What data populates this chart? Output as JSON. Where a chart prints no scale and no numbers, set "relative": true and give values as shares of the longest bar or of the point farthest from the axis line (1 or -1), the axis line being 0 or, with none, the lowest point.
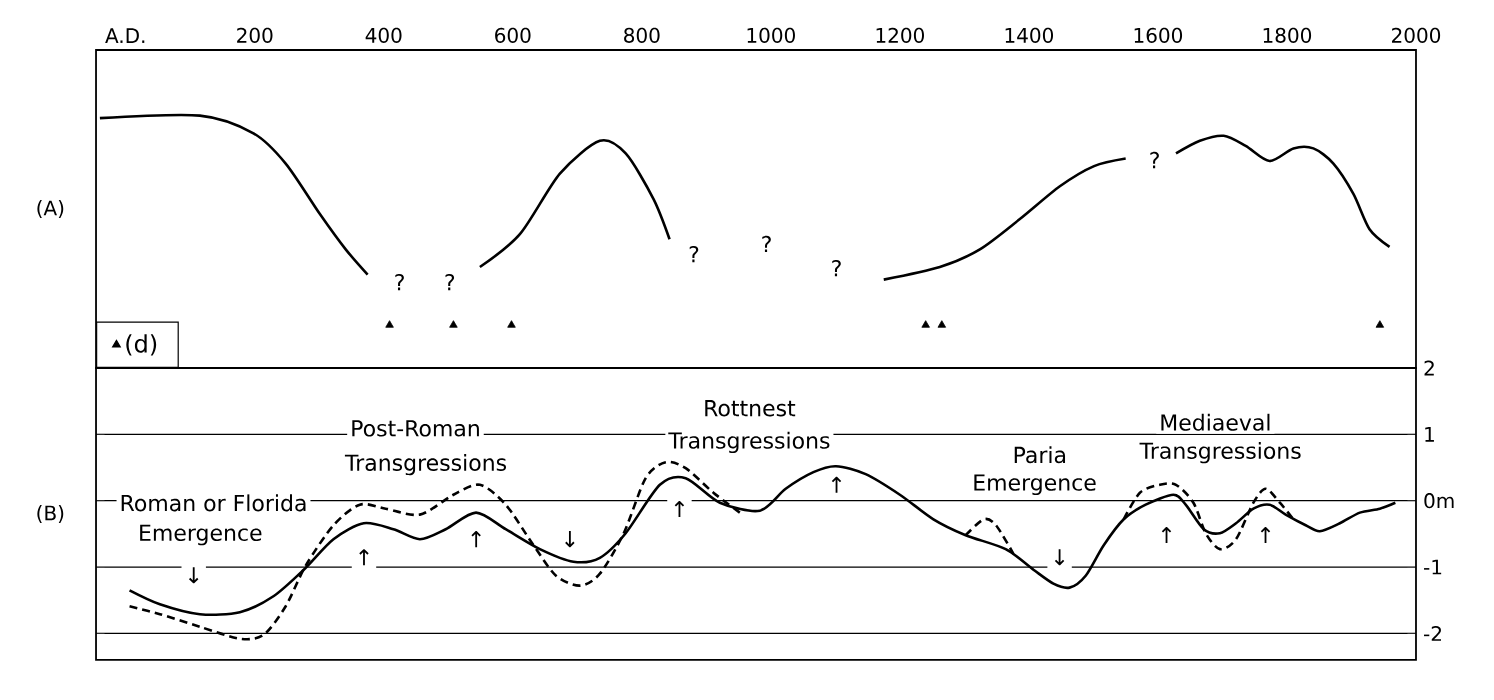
{
  "chart_data": [
    {
      "type": "line",
      "relative": true,
      "ylabel": "(A)",
      "xlim": [
        -46,
        2000
      ],
      "xticks": [
        {
          "value": 0,
          "label": "A.D."
        },
        200,
        400,
        600,
        800,
        1000,
        1200,
        1400,
        1600,
        1800,
        2000
      ],
      "tick_labels": "x",
      "legend": "bottom left",
      "series": [
        {
          "color": "#000000",
          "line_style": "solid",
          "x": [
            -40,
            115,
            198,
            248,
            301,
            341,
            375,
            460,
            549,
            611,
            673,
            735,
            775,
            818,
            843,
            1000,
            1175,
            1262,
            1324,
            1386,
            1448,
            1501,
            1550,
            1590,
            1628,
            1665,
            1702,
            1736,
            1773,
            1810,
            1841,
            1872,
            1903,
            1928,
            1959
          ],
          "values": [
            0.99,
            1.0,
            0.93,
            0.81,
            0.61,
            0.47,
            0.37,
            null,
            0.4,
            0.53,
            0.77,
            0.9,
            0.85,
            0.67,
            0.51,
            null,
            0.35,
            0.4,
            0.47,
            0.59,
            0.72,
            0.8,
            0.83,
            null,
            0.85,
            0.9,
            0.92,
            0.88,
            0.82,
            0.87,
            0.87,
            0.81,
            0.69,
            0.55,
            0.48
          ]
        },
        {
          "type": "scatter",
          "name": "(d)",
          "color": "#000000",
          "marker": "triangle",
          "x": [
            409,
            508,
            598,
            1240,
            1265,
            1944
          ],
          "values": [
            0.17,
            0.17,
            0.17,
            0.17,
            0.17,
            0.17
          ]
        }
      ],
      "annotations": [
        "?",
        "?",
        "?",
        "?",
        "?",
        "?"
      ]
    },
    {
      "type": "line",
      "ylabel": "(B)",
      "xlim": [
        -46,
        2000
      ],
      "ylim": [
        -2.4,
        2
      ],
      "yticks": [
        2,
        1,
        {
          "value": 0,
          "label": "0m"
        },
        -1,
        -2
      ],
      "tick_labels": "y",
      "grid": "y",
      "series": [
        {
          "color": "#000000",
          "line_style": "solid",
          "x": [
            6,
            53,
            115,
            177,
            229,
            276,
            322,
            369,
            415,
            456,
            496,
            543,
            589,
            642,
            694,
            735,
            775,
            828,
            868,
            921,
            983,
            1023,
            1066,
            1101,
            1147,
            1200,
            1252,
            1302,
            1364,
            1407,
            1438,
            1463,
            1488,
            1516,
            1547,
            1581,
            1624,
            1643,
            1671,
            1696,
            1721,
            1748,
            1773,
            1798,
            1829,
            1851,
            1882,
            1913,
            1944,
            1968
          ],
          "values": [
            -1.35,
            -1.56,
            -1.71,
            -1.68,
            -1.44,
            -1.04,
            -0.58,
            -0.34,
            -0.43,
            -0.58,
            -0.43,
            -0.18,
            -0.43,
            -0.73,
            -0.92,
            -0.86,
            -0.49,
            0.24,
            0.34,
            -0.03,
            -0.15,
            0.18,
            0.43,
            0.52,
            0.4,
            0.09,
            -0.28,
            -0.52,
            -0.73,
            -1.04,
            -1.25,
            -1.31,
            -1.13,
            -0.67,
            -0.28,
            -0.06,
            0.09,
            -0.06,
            -0.43,
            -0.49,
            -0.34,
            -0.12,
            -0.06,
            -0.21,
            -0.37,
            -0.46,
            -0.34,
            -0.18,
            -0.12,
            -0.03
          ]
        },
        {
          "color": "#000000",
          "line_style": "dashed",
          "x": [
            6,
            53,
            115,
            177,
            214,
            248,
            279,
            322,
            363,
            403,
            456,
            508,
            549,
            589,
            632,
            667,
            704,
            735,
            772,
            806,
            837,
            868,
            911,
            952,
            1100,
            1302,
            1330,
            1349,
            1376,
            1450,
            1547,
            1572,
            1603,
            1628,
            1655,
            1674,
            1696,
            1721,
            1748,
            1767,
            1789,
            1810
          ],
          "values": [
            -1.59,
            -1.71,
            -1.9,
            -2.08,
            -2.02,
            -1.59,
            -0.98,
            -0.37,
            -0.06,
            -0.12,
            -0.21,
            0.09,
            0.24,
            -0.06,
            -0.67,
            -1.13,
            -1.28,
            -1.1,
            -0.49,
            0.34,
            0.58,
            0.49,
            0.12,
            -0.18,
            null,
            -0.52,
            -0.28,
            -0.37,
            -0.8,
            null,
            -0.28,
            0.12,
            0.24,
            0.24,
            -0.03,
            -0.49,
            -0.73,
            -0.58,
            -0.03,
            0.18,
            -0.03,
            -0.28
          ]
        }
      ],
      "annotations": [
        "Roman or Florida",
        "Emergence",
        "Post-Roman",
        "Transgressions",
        "Rottnest",
        "Transgressions",
        "Paria",
        "Emergence",
        "Mediaeval",
        "Transgressions",
        "↓",
        "↑",
        "↑",
        "↓",
        "↑",
        "↑",
        "↓",
        "↑",
        "↑"
      ]
    }
  ]
}
